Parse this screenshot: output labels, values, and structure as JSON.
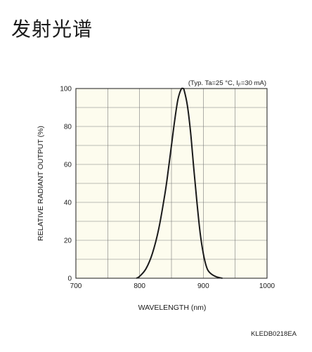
{
  "page": {
    "title": "发射光谱"
  },
  "chart_data": {
    "type": "line",
    "title": "",
    "xlabel": "WAVELENGTH (nm)",
    "ylabel": "RELATIVE RADIANT OUTPUT (%)",
    "xlim": [
      700,
      1000
    ],
    "ylim": [
      0,
      100
    ],
    "x_ticks": [
      700,
      800,
      900,
      1000
    ],
    "y_ticks": [
      0,
      20,
      40,
      60,
      80,
      100
    ],
    "grid": true,
    "annotation": "(Typ. Ta=25 °C, I",
    "annotation_sub": "F",
    "annotation_tail": "=30 mA)",
    "code_label": "KLEDB0218EA",
    "series": [
      {
        "color": "#1a1a1a",
        "x": [
          795,
          800,
          810,
          820,
          830,
          840,
          845,
          850,
          855,
          860,
          865,
          868,
          870,
          875,
          880,
          885,
          890,
          895,
          900,
          905,
          910,
          920,
          930
        ],
        "y": [
          0,
          1,
          5,
          13,
          26,
          45,
          57,
          70,
          83,
          94,
          99.5,
          100,
          99,
          91,
          77,
          58,
          40,
          24,
          13,
          6,
          3,
          0.8,
          0
        ]
      }
    ]
  }
}
